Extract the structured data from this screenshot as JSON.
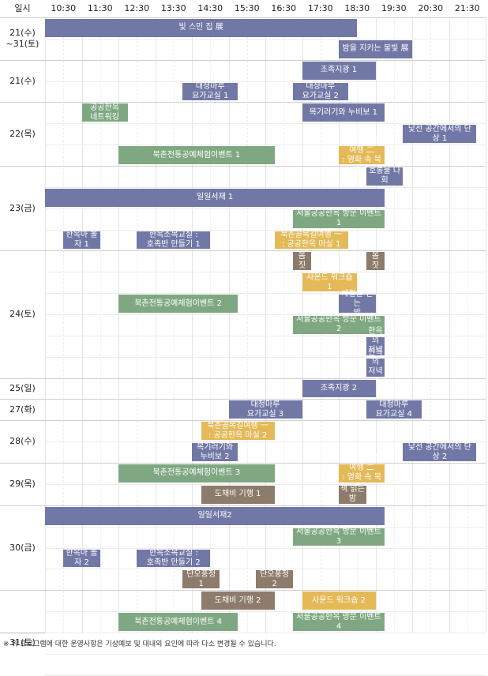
{
  "header": {
    "first": "일시",
    "times": [
      "10:30",
      "11:30",
      "12:30",
      "13:30",
      "14:30",
      "15:30",
      "16:30",
      "17:30",
      "18:30",
      "19:30",
      "20:30",
      "21:30"
    ]
  },
  "days": [
    {
      "label": "21(수)\n~31(토)",
      "rows": 2
    },
    {
      "label": "21(수)",
      "rows": 2
    },
    {
      "label": "22(목)",
      "rows": 3
    },
    {
      "label": "23(금)",
      "rows": 4
    },
    {
      "label": "24(토)",
      "rows": 6
    },
    {
      "label": "25(일)",
      "rows": 1
    },
    {
      "label": "27(화)",
      "rows": 1
    },
    {
      "label": "28(수)",
      "rows": 2
    },
    {
      "label": "29(목)",
      "rows": 2
    },
    {
      "label": "30(금)",
      "rows": 4
    },
    {
      "label": "31(토)",
      "rows": 5
    }
  ],
  "events": [
    {
      "row": 0,
      "start": 10.5,
      "end": 19.0,
      "label": "빛 스민 집 展",
      "color": "purple"
    },
    {
      "row": 1,
      "start": 18.5,
      "end": 20.5,
      "label": "밤을 지키는 불빛 展",
      "color": "purple"
    },
    {
      "row": 2,
      "start": 17.5,
      "end": 19.5,
      "label": "조족지광 1",
      "color": "purple"
    },
    {
      "row": 3,
      "start": 14.25,
      "end": 15.75,
      "label": "대청마루\n요가교실 1",
      "color": "purple"
    },
    {
      "row": 3,
      "start": 17.25,
      "end": 18.75,
      "label": "대청마루\n요가교실 2",
      "color": "purple"
    },
    {
      "row": 4,
      "start": 11.5,
      "end": 12.75,
      "label": "공공한옥\n네트워킹",
      "color": "green"
    },
    {
      "row": 4,
      "start": 17.5,
      "end": 19.75,
      "label": "목기러기와 누비보 1",
      "color": "purple"
    },
    {
      "row": 5,
      "start": 20.25,
      "end": 22.25,
      "label": "낯선 공간에서의 단상 1",
      "color": "purple"
    },
    {
      "row": 6,
      "start": 12.5,
      "end": 16.75,
      "label": "북촌전통공예체험이벤트 1",
      "color": "green"
    },
    {
      "row": 6,
      "start": 18.5,
      "end": 19.75,
      "label": "북촌골목길여행 二\n: 영화 속 북촌 1",
      "color": "yellow"
    },
    {
      "row": 7,
      "start": 19.25,
      "end": 20.25,
      "label": "호롱불 다회",
      "color": "purple"
    },
    {
      "row": 8,
      "start": 10.5,
      "end": 19.75,
      "label": "일일서재 1",
      "color": "purple"
    },
    {
      "row": 9,
      "start": 17.25,
      "end": 19.75,
      "label": "서울공공한옥 방문 이벤트 1",
      "color": "green"
    },
    {
      "row": 10,
      "start": 11.0,
      "end": 12.0,
      "label": "한옥아 놀자 1",
      "color": "purple"
    },
    {
      "row": 10,
      "start": 13.0,
      "end": 15.0,
      "label": "한옥소목교실 :\n호족반 만들기 1",
      "color": "purple"
    },
    {
      "row": 10,
      "start": 16.75,
      "end": 18.75,
      "label": "북촌골목길여행 一\n: 공공한옥 마실 1",
      "color": "yellow"
    },
    {
      "row": 11,
      "start": 17.25,
      "end": 17.75,
      "label": "몸\n짓",
      "color": "brown"
    },
    {
      "row": 11,
      "start": 19.25,
      "end": 19.75,
      "label": "몸\n짓",
      "color": "brown"
    },
    {
      "row": 12,
      "start": 17.5,
      "end": 19.0,
      "label": "사운드 워크숍 1",
      "color": "yellow"
    },
    {
      "row": 13,
      "start": 18.5,
      "end": 19.5,
      "label": "계절을 걷는\n밤",
      "color": "purple"
    },
    {
      "row": 13,
      "start": 12.5,
      "end": 15.75,
      "label": "북촌전통공예체험이벤트 2",
      "color": "green"
    },
    {
      "row": 14,
      "start": 17.25,
      "end": 19.75,
      "label": "서울공공한옥 방문 이벤트 2",
      "color": "green"
    },
    {
      "row": 15,
      "start": 19.25,
      "end": 19.75,
      "label": "한옥의\n저녁 1",
      "color": "purple"
    },
    {
      "row": 16,
      "start": 19.25,
      "end": 19.75,
      "label": "한옥의\n저녁 2",
      "color": "purple"
    },
    {
      "row": 17,
      "start": 17.5,
      "end": 19.5,
      "label": "조족지광 2",
      "color": "purple"
    },
    {
      "row": 18,
      "start": 15.5,
      "end": 17.5,
      "label": "대청마루\n요가교실 3",
      "color": "purple"
    },
    {
      "row": 18,
      "start": 19.25,
      "end": 20.75,
      "label": "대청마루\n요가교실 4",
      "color": "purple"
    },
    {
      "row": 19,
      "start": 14.75,
      "end": 16.75,
      "label": "북촌골목길여행 一\n: 공공한옥 마실 2",
      "color": "yellow"
    },
    {
      "row": 20,
      "start": 14.5,
      "end": 15.75,
      "label": "목기러기와\n누비보 2",
      "color": "purple"
    },
    {
      "row": 20,
      "start": 20.25,
      "end": 22.25,
      "label": "낯선 공간에서의 단상 2",
      "color": "purple"
    },
    {
      "row": 21,
      "start": 12.5,
      "end": 16.75,
      "label": "북촌전통공예체험이벤트 3",
      "color": "green"
    },
    {
      "row": 21,
      "start": 18.5,
      "end": 19.75,
      "label": "북촌골목길여행 二\n: 영화 속 북촌 2",
      "color": "yellow"
    },
    {
      "row": 22,
      "start": 14.75,
      "end": 16.75,
      "label": "도채비 기행 1",
      "color": "brown"
    },
    {
      "row": 22,
      "start": 18.5,
      "end": 19.25,
      "label": "책 읽는\n밤",
      "color": "brown"
    },
    {
      "row": 23,
      "start": 10.5,
      "end": 19.75,
      "label": "일일서재2",
      "color": "purple"
    },
    {
      "row": 24,
      "start": 17.25,
      "end": 19.75,
      "label": "서울공공한옥 방문 이벤트 3",
      "color": "green"
    },
    {
      "row": 25,
      "start": 11.0,
      "end": 12.0,
      "label": "한옥아 놀자 2",
      "color": "purple"
    },
    {
      "row": 25,
      "start": 13.0,
      "end": 15.0,
      "label": "한옥소목교실 :\n호족반 만들기 2",
      "color": "purple"
    },
    {
      "row": 26,
      "start": 14.25,
      "end": 15.25,
      "label": "단오풍정\n1",
      "color": "brown"
    },
    {
      "row": 26,
      "start": 16.25,
      "end": 17.25,
      "label": "단오풍정\n2",
      "color": "brown"
    },
    {
      "row": 27,
      "start": 14.75,
      "end": 16.75,
      "label": "도채비 기행 2",
      "color": "brown"
    },
    {
      "row": 27,
      "start": 17.5,
      "end": 19.5,
      "label": "사운드 워크숍 2",
      "color": "yellow"
    },
    {
      "row": 28,
      "start": 12.5,
      "end": 15.75,
      "label": "북촌전통공예체험이벤트 4",
      "color": "green"
    },
    {
      "row": 28,
      "start": 17.25,
      "end": 19.75,
      "label": "서울공공한옥 방문 이벤트 4",
      "color": "green"
    }
  ],
  "footnote": "※ 위 프로그램에 대한 운영사항은 기상예보 및 대내외 요인에 따라 다소 변경될 수 있습니다.",
  "colors": {
    "purple": "#7278a6",
    "green": "#7fa882",
    "yellow": "#e4b957",
    "brown": "#8d7b6b"
  }
}
